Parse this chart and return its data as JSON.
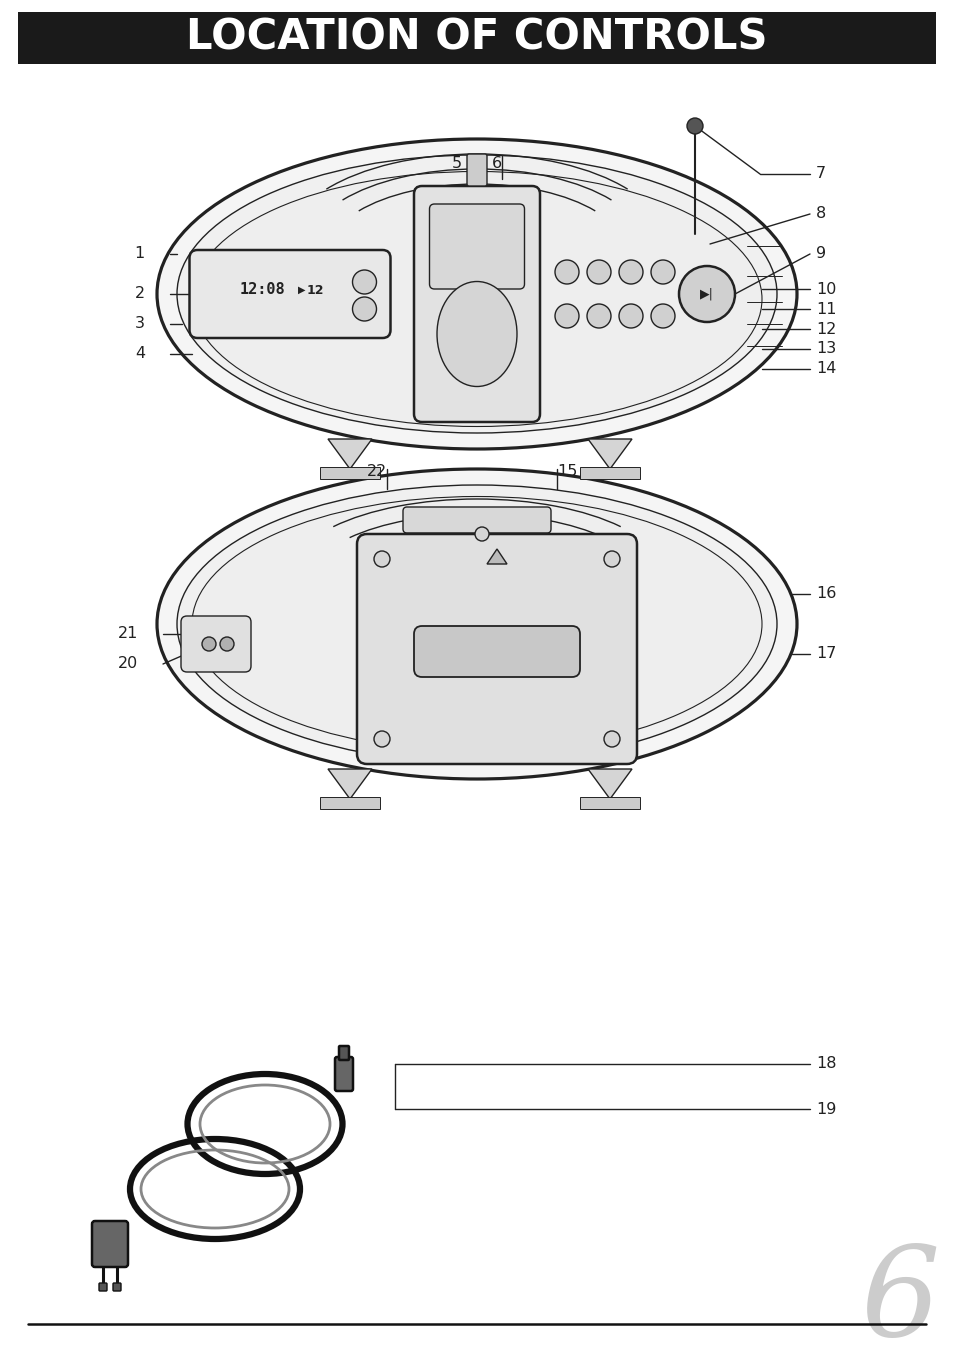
{
  "title": "LOCATION OF CONTROLS",
  "title_bg": "#1a1a1a",
  "title_color": "#ffffff",
  "title_fontsize": 30,
  "bg_color": "#ffffff",
  "page_number": "6",
  "line_color": "#222222",
  "label_fontsize": 11.5
}
